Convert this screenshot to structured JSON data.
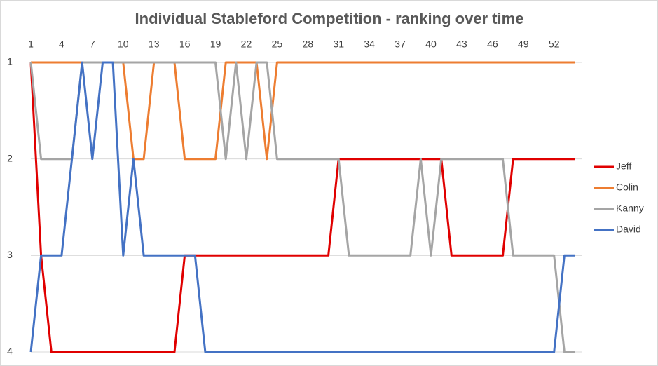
{
  "chart_data": {
    "type": "line",
    "title": "Individual Stableford Competition -  ranking over time",
    "categories": [
      1,
      null,
      null,
      4,
      null,
      null,
      7,
      null,
      null,
      10,
      null,
      null,
      13,
      null,
      null,
      16,
      null,
      null,
      19,
      null,
      null,
      22,
      null,
      null,
      25,
      null,
      null,
      28,
      null,
      null,
      31,
      null,
      null,
      34,
      null,
      null,
      37,
      null,
      null,
      40,
      null,
      null,
      43,
      null,
      null,
      46,
      null,
      null,
      49,
      null,
      null,
      52,
      null,
      null
    ],
    "series": [
      {
        "name": "Jeff",
        "color": "#e00000",
        "values": [
          1,
          3,
          4,
          4,
          4,
          4,
          4,
          4,
          4,
          4,
          4,
          4,
          4,
          4,
          4,
          3,
          3,
          3,
          3,
          3,
          3,
          3,
          3,
          3,
          3,
          3,
          3,
          3,
          3,
          3,
          2,
          2,
          2,
          2,
          2,
          2,
          2,
          2,
          2,
          2,
          2,
          3,
          3,
          3,
          3,
          3,
          3,
          2,
          2,
          2,
          2,
          2,
          2,
          2
        ]
      },
      {
        "name": "Colin",
        "color": "#ed7d31",
        "values": [
          1,
          1,
          1,
          1,
          1,
          1,
          1,
          1,
          1,
          1,
          2,
          2,
          1,
          1,
          1,
          2,
          2,
          2,
          2,
          1,
          1,
          1,
          1,
          2,
          1,
          1,
          1,
          1,
          1,
          1,
          1,
          1,
          1,
          1,
          1,
          1,
          1,
          1,
          1,
          1,
          1,
          1,
          1,
          1,
          1,
          1,
          1,
          1,
          1,
          1,
          1,
          1,
          1,
          1
        ]
      },
      {
        "name": "Kanny",
        "color": "#a5a5a5",
        "values": [
          1,
          2,
          2,
          2,
          2,
          1,
          1,
          1,
          1,
          1,
          1,
          1,
          1,
          1,
          1,
          1,
          1,
          1,
          1,
          2,
          1,
          2,
          1,
          1,
          2,
          2,
          2,
          2,
          2,
          2,
          2,
          3,
          3,
          3,
          3,
          3,
          3,
          3,
          2,
          3,
          2,
          2,
          2,
          2,
          2,
          2,
          2,
          3,
          3,
          3,
          3,
          3,
          4,
          4
        ]
      },
      {
        "name": "David",
        "color": "#4472c4",
        "values": [
          4,
          3,
          3,
          3,
          2,
          1,
          2,
          1,
          1,
          3,
          2,
          3,
          3,
          3,
          3,
          3,
          3,
          4,
          4,
          4,
          4,
          4,
          4,
          4,
          4,
          4,
          4,
          4,
          4,
          4,
          4,
          4,
          4,
          4,
          4,
          4,
          4,
          4,
          4,
          4,
          4,
          4,
          4,
          4,
          4,
          4,
          4,
          4,
          4,
          4,
          4,
          4,
          3,
          3
        ]
      }
    ],
    "ylim": [
      4,
      1
    ],
    "yticks": [
      1,
      2,
      3,
      4
    ],
    "grid": true
  }
}
